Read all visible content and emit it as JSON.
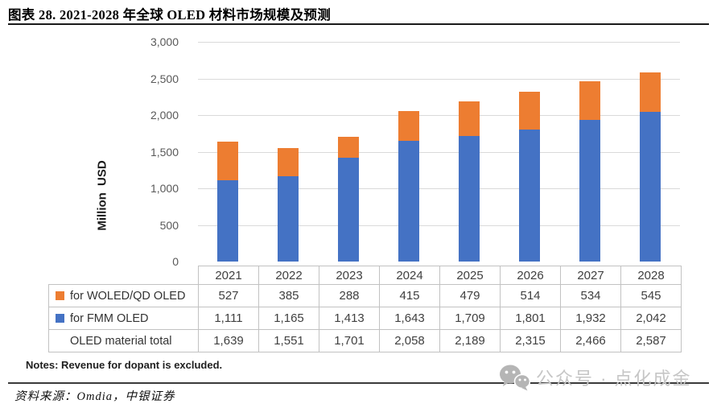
{
  "title": "图表 28. 2021-2028 年全球 OLED 材料市场规模及预测",
  "notes": "Notes: Revenue for dopant is excluded.",
  "source": "资料来源：Omdia，中银证券",
  "watermark": {
    "icon": "wechat-icon",
    "text": "公众号 · 点化成金",
    "color": "#c6c6c6"
  },
  "chart_data": {
    "type": "bar",
    "stacked": true,
    "title": "",
    "xlabel": "",
    "ylabel": "Million USD",
    "ylim": [
      0,
      3000
    ],
    "ytick_step": 500,
    "grid": true,
    "legend_position": "table-left",
    "categories": [
      "2021",
      "2022",
      "2023",
      "2024",
      "2025",
      "2026",
      "2027",
      "2028"
    ],
    "series": [
      {
        "name": "for WOLED/QD OLED",
        "color": "#ED7D31",
        "values": [
          527,
          385,
          288,
          415,
          479,
          514,
          534,
          545
        ]
      },
      {
        "name": "for FMM OLED",
        "color": "#4472C4",
        "values": [
          1111,
          1165,
          1413,
          1643,
          1709,
          1801,
          1932,
          2042
        ]
      }
    ],
    "totals_row": {
      "label": "OLED material total",
      "values": [
        1639,
        1551,
        1701,
        2058,
        2189,
        2315,
        2466,
        2587
      ]
    }
  }
}
